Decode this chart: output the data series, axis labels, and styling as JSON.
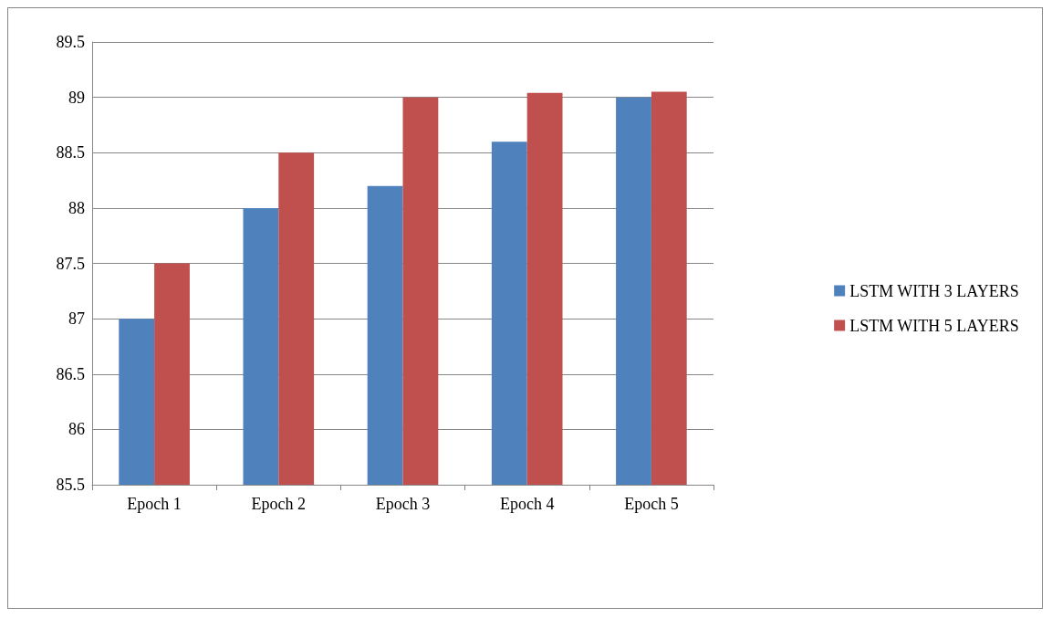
{
  "chart_data": {
    "type": "bar",
    "categories": [
      "Epoch 1",
      "Epoch 2",
      "Epoch 3",
      "Epoch 4",
      "Epoch 5"
    ],
    "series": [
      {
        "name": "LSTM WITH 3 LAYERS",
        "color": "#4f81bd",
        "values": [
          87,
          88,
          88.2,
          88.6,
          89
        ]
      },
      {
        "name": "LSTM WITH 5 LAYERS",
        "color": "#c0504d",
        "values": [
          87.5,
          88.5,
          89,
          89.04,
          89.05
        ]
      }
    ],
    "ylim": [
      85.5,
      89.5
    ],
    "yticks": [
      85.5,
      86,
      86.5,
      87,
      87.5,
      88,
      88.5,
      89,
      89.5
    ],
    "grid": "y",
    "legend": "right"
  }
}
